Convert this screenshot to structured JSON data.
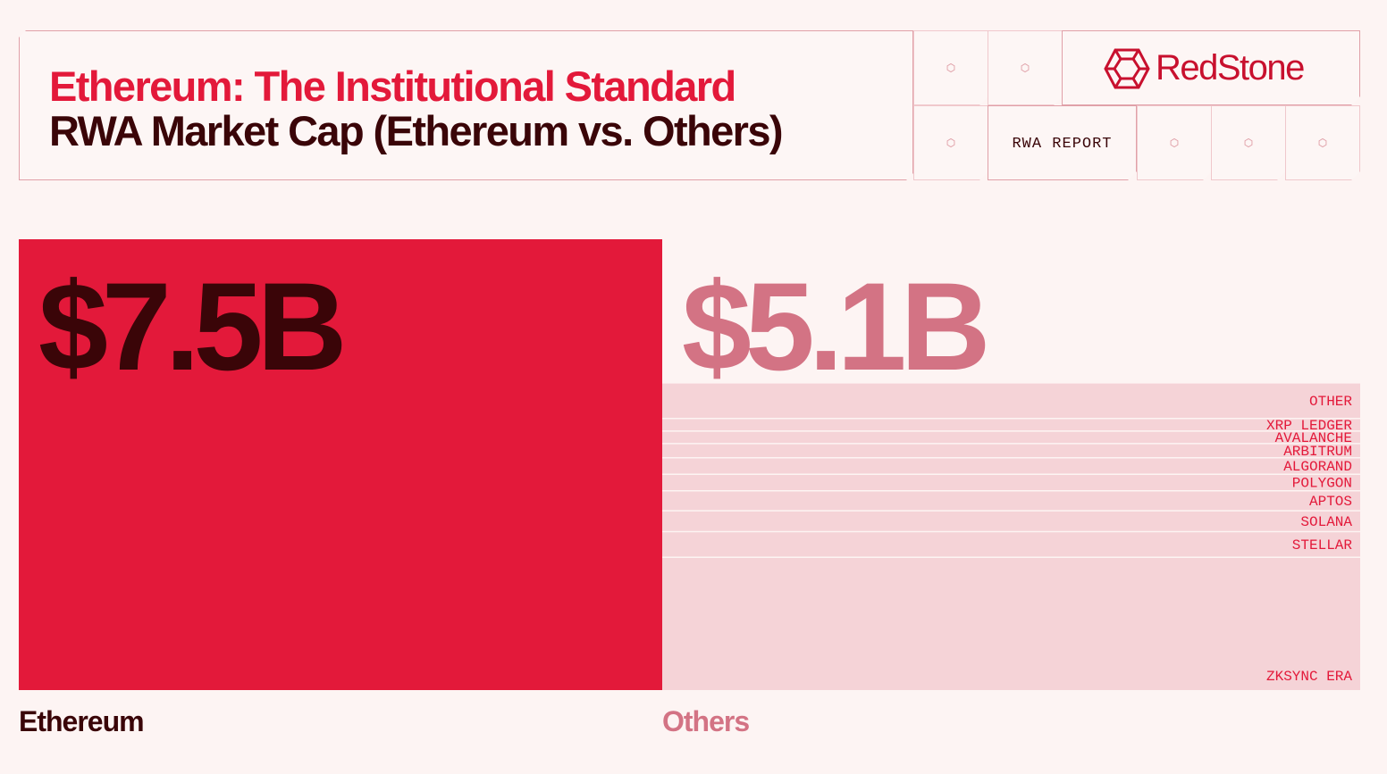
{
  "header": {
    "title": "Ethereum: The Institutional Standard",
    "subtitle": "RWA Market Cap (Ethereum vs. Others)",
    "brand": "RedStone",
    "report_label": "RWA REPORT"
  },
  "colors": {
    "primary_red": "#e3193a",
    "dark": "#3a0508",
    "others_text": "#d37384",
    "others_fill": "#f5d3d7",
    "background": "#fdf4f3"
  },
  "chart_data": {
    "type": "bar",
    "categories": [
      "Ethereum",
      "Others"
    ],
    "values": [
      7.5,
      5.1
    ],
    "value_labels": [
      "$7.5B",
      "$5.1B"
    ],
    "unit": "USD billions",
    "others_breakdown": [
      {
        "name": "OTHER",
        "share": 0.114
      },
      {
        "name": "XRP LEDGER",
        "share": 0.041
      },
      {
        "name": "AVALANCHE",
        "share": 0.041
      },
      {
        "name": "ARBITRUM",
        "share": 0.046
      },
      {
        "name": "ALGORAND",
        "share": 0.054
      },
      {
        "name": "POLYGON",
        "share": 0.054
      },
      {
        "name": "APTOS",
        "share": 0.065
      },
      {
        "name": "SOLANA",
        "share": 0.068
      },
      {
        "name": "STELLAR",
        "share": 0.084
      },
      {
        "name": "ZKSYNC ERA",
        "share": 0.433
      }
    ],
    "title": "RWA Market Cap (Ethereum vs. Others)"
  }
}
